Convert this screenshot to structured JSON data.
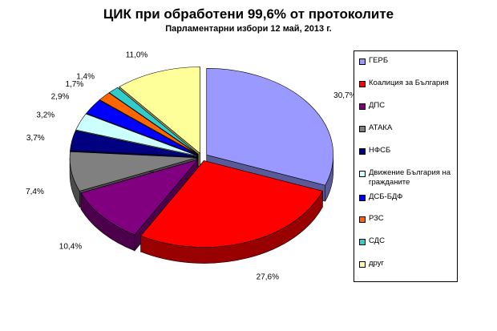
{
  "chart_data": {
    "type": "pie",
    "title": "ЦИК при обработени 99,6% от протоколите",
    "subtitle": "Парламентарни избори 12 май, 2013 г.",
    "legend_position": "right",
    "series": [
      {
        "name": "ГЕРБ",
        "value": 30.7,
        "label": "30,7%",
        "color": "#9999ff",
        "side": "#5a5a99"
      },
      {
        "name": "Коалиция за България",
        "value": 27.6,
        "label": "27,6%",
        "color": "#ff0000",
        "side": "#990000"
      },
      {
        "name": "ДПС",
        "value": 10.4,
        "label": "10,4%",
        "color": "#800080",
        "side": "#4c004c"
      },
      {
        "name": "АТАКА",
        "value": 7.4,
        "label": "7,4%",
        "color": "#808080",
        "side": "#4c4c4c"
      },
      {
        "name": "НФСБ",
        "value": 3.7,
        "label": "3,7%",
        "color": "#000080",
        "side": "#00004c"
      },
      {
        "name": "Движение България на гражданите",
        "value": 3.2,
        "label": "3,2%",
        "color": "#ccffff",
        "side": "#7a9999"
      },
      {
        "name": "ДСБ-БДФ",
        "value": 2.9,
        "label": "2,9%",
        "color": "#0000ff",
        "side": "#000099"
      },
      {
        "name": "РЗС",
        "value": 1.7,
        "label": "1,7%",
        "color": "#ff6600",
        "side": "#993d00"
      },
      {
        "name": "СДС",
        "value": 1.4,
        "label": "1,4%",
        "color": "#33cccc",
        "side": "#1f7a7a"
      },
      {
        "name": "друг",
        "value": 11.0,
        "label": "11,0%",
        "color": "#ffff99",
        "side": "#99995c"
      }
    ]
  }
}
